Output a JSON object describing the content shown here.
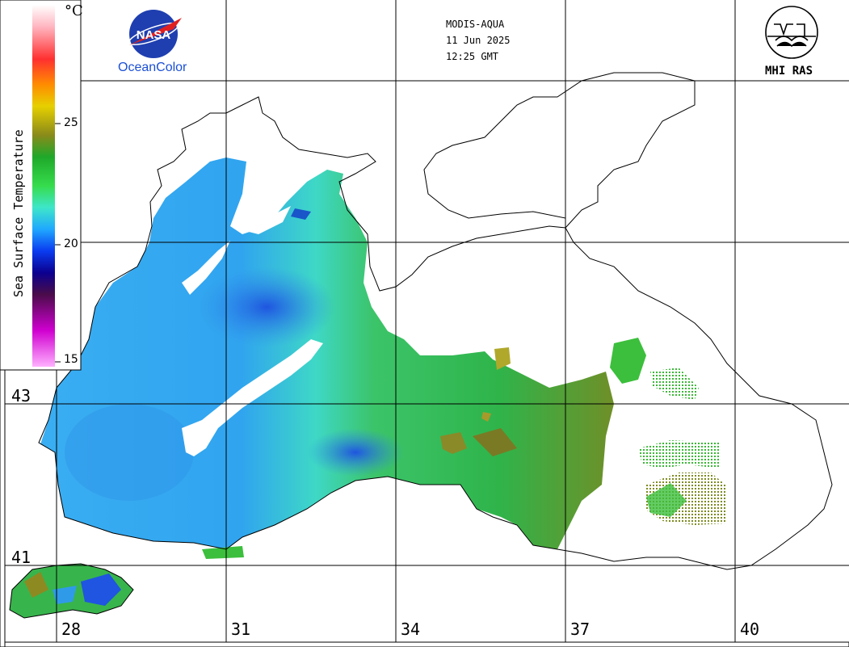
{
  "header": {
    "sensor": "MODIS-AQUA",
    "date": "11 Jun 2025",
    "time": "12:25 GMT"
  },
  "logos": {
    "nasa": {
      "text": "NASA",
      "caption": "OceanColor"
    },
    "mhi": {
      "caption": "MHI RAS"
    }
  },
  "colorbar": {
    "title": "Sea Surface Temperature",
    "unit": "°C",
    "ticks": [
      "25",
      "20",
      "15"
    ],
    "min": 15,
    "max": 30,
    "colors": [
      "#ffffff",
      "#ffb6c1",
      "#ff2e2e",
      "#ff8c00",
      "#e6d000",
      "#8a8a1a",
      "#1fa82a",
      "#32d94a",
      "#3ee6c9",
      "#20a8ff",
      "#0a3cf0",
      "#0b0090",
      "#5a0c5a",
      "#d000d0",
      "#ffb0ff"
    ]
  },
  "grid": {
    "latitudes": [
      "43",
      "41"
    ],
    "longitudes": [
      "28",
      "31",
      "34",
      "37",
      "40"
    ]
  },
  "palette": {
    "sea_cool": "#3aa8f0",
    "sea_mid": "#3ee6c9",
    "sea_warm": "#28b83c",
    "sea_warmest": "#8e8a22",
    "coast": "#000000",
    "land": "#ffffff"
  }
}
